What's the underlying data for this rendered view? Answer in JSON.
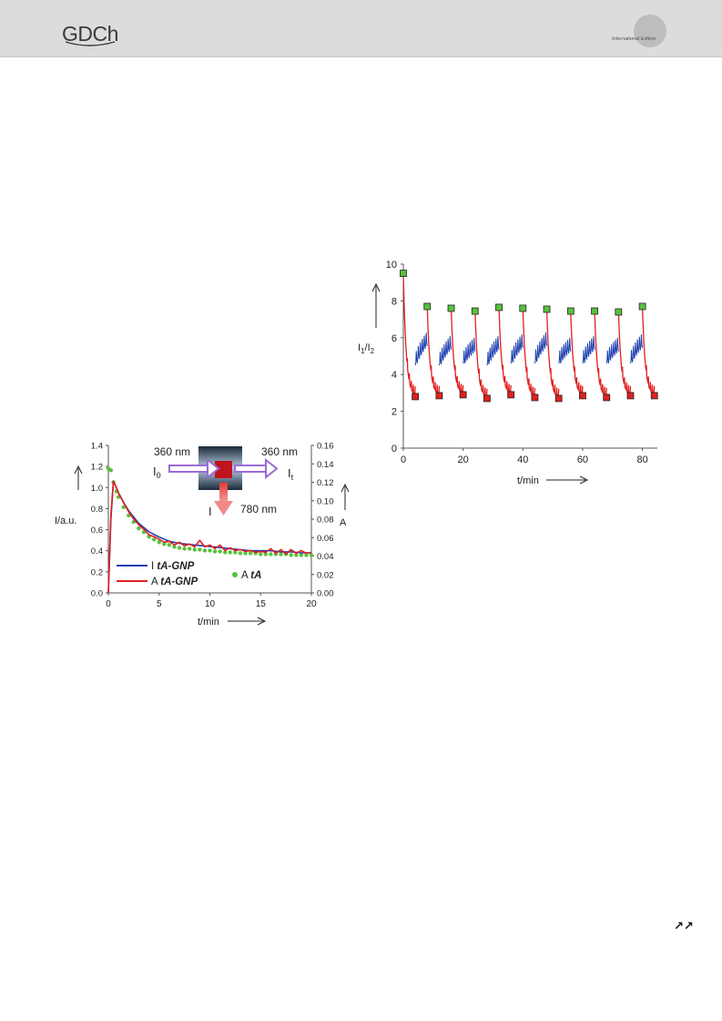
{
  "header": {
    "logo_text": "GDCh",
    "edition_text": "International Edition"
  },
  "footer": {
    "corner_symbol": "↗↗"
  },
  "chart_data": [
    {
      "type": "line",
      "panel": "left",
      "xlabel": "t/min",
      "ylabel_left": "I/a.u.",
      "ylabel_right": "A",
      "xlim": [
        0,
        20
      ],
      "ylim_left": [
        0,
        1.4
      ],
      "ylim_right": [
        0,
        0.16
      ],
      "xticks": [
        "0",
        "5",
        "10",
        "15",
        "20"
      ],
      "yticks_left": [
        "0.0",
        "0.2",
        "0.4",
        "0.6",
        "0.8",
        "1.0",
        "1.2",
        "1.4"
      ],
      "yticks_right": [
        "0.00",
        "0.02",
        "0.04",
        "0.06",
        "0.08",
        "0.10",
        "0.12",
        "0.14",
        "0.16"
      ],
      "grid": false,
      "legend": [
        {
          "prefix": "I ",
          "emph": "tA-GNP",
          "color": "#1f3fb0",
          "marker": "line"
        },
        {
          "prefix": "A ",
          "emph": "tA-GNP",
          "color": "#e02020",
          "marker": "line"
        },
        {
          "prefix": "A ",
          "emph": "tA",
          "color": "#57c23c",
          "marker": "dot"
        }
      ],
      "inset": {
        "in_wavelength": "360 nm",
        "out_wavelength": "360 nm",
        "emission_wavelength": "780 nm",
        "incident_label": "I",
        "incident_sub": "0",
        "transmitted_label": "I",
        "transmitted_sub": "t",
        "emission_label": "I"
      },
      "series": [
        {
          "name": "I tA-GNP",
          "axis": "left",
          "color": "#1f3fb0",
          "x": [
            0,
            0.25,
            0.5,
            0.8,
            1,
            1.5,
            2,
            2.5,
            3,
            3.5,
            4,
            5,
            6,
            7,
            8,
            9,
            10,
            11,
            12,
            13,
            14,
            15,
            16,
            17,
            18,
            19,
            20
          ],
          "y": [
            0.0,
            0.7,
            1.06,
            1.0,
            0.95,
            0.86,
            0.78,
            0.72,
            0.66,
            0.62,
            0.58,
            0.53,
            0.49,
            0.47,
            0.46,
            0.45,
            0.44,
            0.43,
            0.42,
            0.41,
            0.4,
            0.4,
            0.4,
            0.39,
            0.39,
            0.38,
            0.38
          ]
        },
        {
          "name": "A tA-GNP",
          "axis": "right",
          "color": "#e02020",
          "x": [
            0,
            0.25,
            0.5,
            0.8,
            1,
            1.5,
            2,
            2.5,
            3,
            3.5,
            4,
            4.5,
            5,
            5.5,
            6,
            6.5,
            7,
            7.5,
            8,
            8.5,
            9,
            9.5,
            10,
            10.5,
            11,
            11.5,
            12,
            12.5,
            13,
            13.5,
            14,
            14.5,
            15,
            15.5,
            16,
            16.5,
            17,
            17.5,
            18,
            18.5,
            19,
            19.5,
            20
          ],
          "y": [
            0.0,
            0.085,
            0.121,
            0.114,
            0.108,
            0.098,
            0.088,
            0.08,
            0.074,
            0.069,
            0.063,
            0.061,
            0.058,
            0.055,
            0.056,
            0.052,
            0.055,
            0.051,
            0.053,
            0.05,
            0.057,
            0.05,
            0.052,
            0.048,
            0.052,
            0.046,
            0.049,
            0.046,
            0.047,
            0.045,
            0.046,
            0.044,
            0.045,
            0.044,
            0.048,
            0.043,
            0.047,
            0.042,
            0.047,
            0.043,
            0.046,
            0.043,
            0.044
          ]
        },
        {
          "name": "A tA",
          "axis": "right",
          "color": "#57c23c",
          "style": "dots",
          "x": [
            0,
            0.25,
            0.5,
            0.8,
            1,
            1.5,
            2,
            2.5,
            3,
            3.5,
            4,
            4.5,
            5,
            5.5,
            6,
            6.5,
            7,
            7.5,
            8,
            8.5,
            9,
            9.5,
            10,
            10.5,
            11,
            11.5,
            12,
            12.5,
            13,
            13.5,
            14,
            14.5,
            15,
            15.5,
            16,
            16.5,
            17,
            17.5,
            18,
            18.5,
            19,
            19.5,
            20
          ],
          "y": [
            0.135,
            0.133,
            0.12,
            0.11,
            0.104,
            0.093,
            0.084,
            0.077,
            0.07,
            0.066,
            0.061,
            0.058,
            0.055,
            0.053,
            0.052,
            0.05,
            0.049,
            0.048,
            0.048,
            0.047,
            0.047,
            0.046,
            0.046,
            0.045,
            0.045,
            0.044,
            0.044,
            0.044,
            0.043,
            0.043,
            0.043,
            0.043,
            0.042,
            0.042,
            0.042,
            0.042,
            0.042,
            0.042,
            0.041,
            0.041,
            0.041,
            0.041,
            0.041
          ]
        }
      ]
    },
    {
      "type": "line",
      "panel": "right",
      "xlabel": "t/min",
      "ylabel": "I",
      "ylabel_sub1": "1",
      "ylabel_mid": "/I",
      "ylabel_sub2": "2",
      "xlim": [
        0,
        85
      ],
      "ylim": [
        0,
        10
      ],
      "xticks": [
        "0",
        "20",
        "40",
        "60",
        "80"
      ],
      "yticks": [
        "0",
        "2",
        "4",
        "6",
        "8",
        "10"
      ],
      "grid": false,
      "cycles": {
        "period_min": 8,
        "count": 10
      },
      "series": [
        {
          "name": "high",
          "color": "#57c23c",
          "marker": "square",
          "x": [
            0,
            8,
            16,
            24,
            32,
            40,
            48,
            56,
            64,
            72,
            80
          ],
          "y": [
            9.5,
            7.7,
            7.6,
            7.45,
            7.65,
            7.6,
            7.55,
            7.45,
            7.45,
            7.4,
            7.7
          ]
        },
        {
          "name": "low",
          "color": "#e02020",
          "marker": "square",
          "x": [
            4,
            12,
            20,
            28,
            36,
            44,
            52,
            60,
            68,
            76,
            84
          ],
          "y": [
            2.8,
            2.85,
            2.9,
            2.7,
            2.9,
            2.75,
            2.7,
            2.85,
            2.75,
            2.85,
            2.85
          ]
        },
        {
          "name": "recovery",
          "color": "#1f3fb0",
          "style": "line",
          "segments": [
            {
              "x0": 4,
              "y0": 4.5,
              "x1": 8,
              "y1": 5.8
            },
            {
              "x0": 12,
              "y0": 4.5,
              "x1": 16,
              "y1": 5.6
            },
            {
              "x0": 20,
              "y0": 4.6,
              "x1": 24,
              "y1": 5.5
            },
            {
              "x0": 28,
              "y0": 4.5,
              "x1": 32,
              "y1": 5.6
            },
            {
              "x0": 36,
              "y0": 4.6,
              "x1": 40,
              "y1": 5.7
            },
            {
              "x0": 44,
              "y0": 4.6,
              "x1": 48,
              "y1": 5.8
            },
            {
              "x0": 52,
              "y0": 4.6,
              "x1": 56,
              "y1": 5.5
            },
            {
              "x0": 60,
              "y0": 4.6,
              "x1": 64,
              "y1": 5.6
            },
            {
              "x0": 68,
              "y0": 4.6,
              "x1": 72,
              "y1": 5.5
            },
            {
              "x0": 76,
              "y0": 4.6,
              "x1": 80,
              "y1": 5.7
            }
          ]
        }
      ]
    }
  ]
}
